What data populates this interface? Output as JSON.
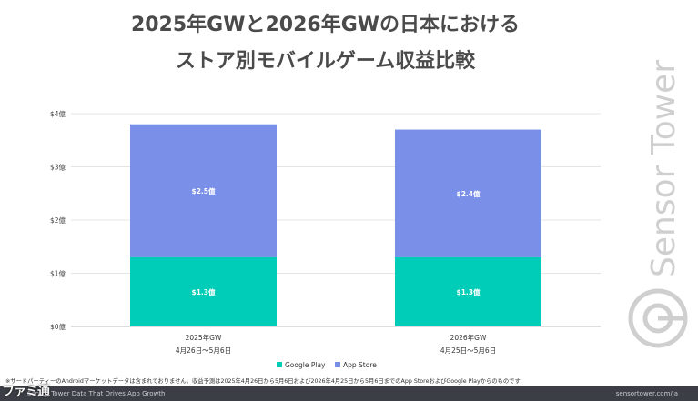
{
  "title_lines": [
    "2025年GWと2026年GWの日本における",
    "ストア別モバイルゲーム収益比較"
  ],
  "chart_data": {
    "type": "bar",
    "stacked": true,
    "categories": [
      "2025年GW",
      "2026年GW"
    ],
    "category_sublabels": [
      "4月26日〜5月6日",
      "4月25日〜5月6日"
    ],
    "series": [
      {
        "name": "Google Play",
        "values": [
          1.3,
          1.3
        ],
        "labels": [
          "$1.3億",
          "$1.3億"
        ],
        "color": "#00cdb8"
      },
      {
        "name": "App Store",
        "values": [
          2.5,
          2.4
        ],
        "labels": [
          "$2.5億",
          "$2.4億"
        ],
        "color": "#7a8fe8"
      }
    ],
    "ylim": [
      0,
      4
    ],
    "yticks": [
      0,
      1,
      2,
      3,
      4
    ],
    "ytick_labels": [
      "$0億",
      "$1億",
      "$2億",
      "$3億",
      "$4億"
    ],
    "grid": true,
    "legend_position": "bottom"
  },
  "watermark": {
    "brand": "Sensor Tower"
  },
  "footnote": "※サードパーティーのAndroidマーケットデータは含まれておりません。収益予測は2025年4月26日から5月6日および2026年4月25日から5月6日までのApp StoreおよびGoogle Playからのものです",
  "footer": {
    "tagline": "Sensor Tower   Data That Drives App Growth",
    "url": "sensortower.com/ja"
  },
  "publisher_mark": "ファミ通",
  "colors": {
    "google_play": "#00cdb8",
    "app_store": "#7a8fe8",
    "title": "#4a4a4a",
    "footer_bg": "#3b3f45"
  }
}
